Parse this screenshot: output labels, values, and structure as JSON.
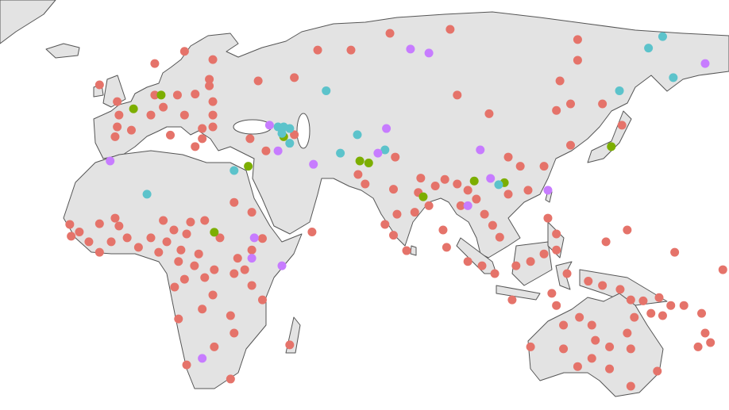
{
  "groups": [
    {
      "color": "#e5736a",
      "points": [
        [
          7.6,
          62.3
        ],
        [
          16,
          66
        ],
        [
          24,
          63.5
        ],
        [
          23,
          57.5
        ],
        [
          23,
          55.5
        ],
        [
          7.6,
          52.7
        ],
        [
          14,
          52.7
        ],
        [
          19,
          53
        ],
        [
          24,
          50.7
        ],
        [
          -2.5,
          46.6
        ],
        [
          6.5,
          46.6
        ],
        [
          10,
          49
        ],
        [
          16,
          46.6
        ],
        [
          24,
          46.6
        ],
        [
          21,
          42.5
        ],
        [
          24,
          43
        ],
        [
          -3,
          43
        ],
        [
          -3.6,
          40
        ],
        [
          1,
          42
        ],
        [
          12,
          40.5
        ],
        [
          21,
          39.4
        ],
        [
          19,
          37
        ],
        [
          -8,
          55.8
        ],
        [
          -3,
          50.7
        ],
        [
          36.8,
          57
        ],
        [
          47,
          58
        ],
        [
          53.6,
          66.4
        ],
        [
          63,
          66.4
        ],
        [
          74,
          71.5
        ],
        [
          91,
          72.7
        ],
        [
          127,
          69.6
        ],
        [
          127,
          63.3
        ],
        [
          122,
          57
        ],
        [
          93,
          52.7
        ],
        [
          102,
          47
        ],
        [
          125,
          50
        ],
        [
          121,
          48
        ],
        [
          134,
          50
        ],
        [
          139.5,
          43.5
        ],
        [
          34.5,
          39.4
        ],
        [
          39,
          35.7
        ],
        [
          47,
          40.6
        ],
        [
          52,
          11
        ],
        [
          75.5,
          33.8
        ],
        [
          67,
          25.6
        ],
        [
          65,
          28.5
        ],
        [
          75,
          24
        ],
        [
          82,
          23
        ],
        [
          85,
          19
        ],
        [
          81,
          17
        ],
        [
          72.6,
          13.3
        ],
        [
          75,
          10
        ],
        [
          78.7,
          5.3
        ],
        [
          76,
          16.4
        ],
        [
          82.7,
          27.4
        ],
        [
          86.8,
          25
        ],
        [
          89.5,
          27
        ],
        [
          93,
          25.6
        ],
        [
          96,
          23.7
        ],
        [
          98.4,
          21
        ],
        [
          94,
          19
        ],
        [
          100.7,
          16.4
        ],
        [
          103,
          13
        ],
        [
          105,
          9.4
        ],
        [
          89,
          11.6
        ],
        [
          90,
          6.3
        ],
        [
          96,
          2
        ],
        [
          100,
          0.7
        ],
        [
          109.6,
          0.7
        ],
        [
          103.6,
          -1.7
        ],
        [
          108.5,
          -9.7
        ],
        [
          113.7,
          2
        ],
        [
          117.5,
          4.3
        ],
        [
          121,
          5.5
        ],
        [
          121,
          10.4
        ],
        [
          118.6,
          15.2
        ],
        [
          113,
          23.7
        ],
        [
          107.4,
          22.5
        ],
        [
          117.5,
          31
        ],
        [
          125,
          37.4
        ],
        [
          107.4,
          33.8
        ],
        [
          110.8,
          31
        ],
        [
          124,
          -1.7
        ],
        [
          130,
          -4
        ],
        [
          134,
          -5.3
        ],
        [
          139,
          -6.5
        ],
        [
          142,
          -9.7
        ],
        [
          145.5,
          -10
        ],
        [
          150,
          -9
        ],
        [
          153.3,
          -11.4
        ],
        [
          157,
          -11.4
        ],
        [
          141,
          11.6
        ],
        [
          135,
          8
        ],
        [
          154.4,
          4.8
        ],
        [
          168,
          -0.5
        ],
        [
          162,
          -13.8
        ],
        [
          163,
          -19.8
        ],
        [
          161,
          -24
        ],
        [
          164.5,
          -22.7
        ],
        [
          121,
          -11.4
        ],
        [
          123,
          -17.4
        ],
        [
          127.5,
          -15
        ],
        [
          131,
          -17.4
        ],
        [
          132,
          -22
        ],
        [
          136,
          -24
        ],
        [
          141,
          -19.8
        ],
        [
          143,
          -15
        ],
        [
          142,
          -24.6
        ],
        [
          136,
          -30.7
        ],
        [
          127,
          -30
        ],
        [
          113.7,
          -24
        ],
        [
          123,
          -24.6
        ],
        [
          149.5,
          -31.4
        ],
        [
          142,
          -36
        ],
        [
          131,
          -27.5
        ],
        [
          119.7,
          -7.7
        ],
        [
          147.7,
          -13.8
        ],
        [
          151,
          -14.5
        ],
        [
          -16.4,
          13.3
        ],
        [
          -13.7,
          11
        ],
        [
          -11,
          8
        ],
        [
          -8,
          4.8
        ],
        [
          -4.7,
          8
        ],
        [
          -2.5,
          12.8
        ],
        [
          -0.2,
          9.2
        ],
        [
          -3.6,
          15.2
        ],
        [
          3,
          6.3
        ],
        [
          6.5,
          9.2
        ],
        [
          8.7,
          4.8
        ],
        [
          11,
          8
        ],
        [
          13,
          11.6
        ],
        [
          16.6,
          10.4
        ],
        [
          17.7,
          14
        ],
        [
          21.7,
          14.5
        ],
        [
          26,
          9.2
        ],
        [
          30,
          20
        ],
        [
          35,
          17
        ],
        [
          38,
          9
        ],
        [
          35,
          5.5
        ],
        [
          31,
          3
        ],
        [
          30,
          -1.7
        ],
        [
          35,
          -5.3
        ],
        [
          38,
          -9.7
        ],
        [
          24.4,
          -0.5
        ],
        [
          20,
          4.3
        ],
        [
          14.3,
          2
        ],
        [
          16,
          -3.4
        ],
        [
          24,
          -8.2
        ],
        [
          21,
          -12.5
        ],
        [
          29,
          -14.5
        ],
        [
          30,
          -19.8
        ],
        [
          24.4,
          -24
        ],
        [
          14.3,
          -15.5
        ],
        [
          16.6,
          -29.5
        ],
        [
          29,
          -33.8
        ],
        [
          45.7,
          -23.4
        ],
        [
          13.2,
          -5.8
        ],
        [
          33,
          -0.5
        ],
        [
          -8,
          13.5
        ],
        [
          -16,
          9.7
        ],
        [
          10,
          14.5
        ],
        [
          15,
          5.5
        ],
        [
          18.8,
          0.7
        ],
        [
          21.7,
          -2.9
        ]
      ]
    },
    {
      "color": "#7cae00",
      "points": [
        [
          1.6,
          48.5
        ],
        [
          9.4,
          52.7
        ],
        [
          44,
          40
        ],
        [
          34,
          31
        ],
        [
          65.5,
          32.6
        ],
        [
          68,
          32
        ],
        [
          24.4,
          10.9
        ],
        [
          97.8,
          26.5
        ],
        [
          106.3,
          26
        ],
        [
          136.5,
          37
        ],
        [
          83.4,
          21.7
        ]
      ]
    },
    {
      "color": "#5cc3cb",
      "points": [
        [
          5.4,
          22.5
        ],
        [
          30,
          29.7
        ],
        [
          42.4,
          43
        ],
        [
          44,
          43
        ],
        [
          45.7,
          42.5
        ],
        [
          43.5,
          41
        ],
        [
          45.7,
          38
        ],
        [
          56,
          54
        ],
        [
          64.8,
          40.6
        ],
        [
          60,
          35
        ],
        [
          72.6,
          36
        ],
        [
          104.7,
          25.4
        ],
        [
          138.8,
          54
        ],
        [
          147,
          67
        ],
        [
          151,
          70.5
        ],
        [
          154,
          58
        ]
      ]
    },
    {
      "color": "#c77cff",
      "points": [
        [
          79.8,
          66.7
        ],
        [
          85,
          65.5
        ],
        [
          163,
          62.3
        ],
        [
          40,
          43.5
        ],
        [
          42.4,
          35.7
        ],
        [
          52.4,
          31.6
        ],
        [
          73,
          42.5
        ],
        [
          70.6,
          35
        ],
        [
          99.5,
          36
        ],
        [
          102.4,
          27.3
        ],
        [
          118.6,
          23.7
        ],
        [
          -5,
          32.6
        ],
        [
          35.7,
          9.2
        ],
        [
          35,
          3
        ],
        [
          43.5,
          0.7
        ],
        [
          96,
          19
        ],
        [
          21,
          -27.5
        ]
      ]
    }
  ]
}
